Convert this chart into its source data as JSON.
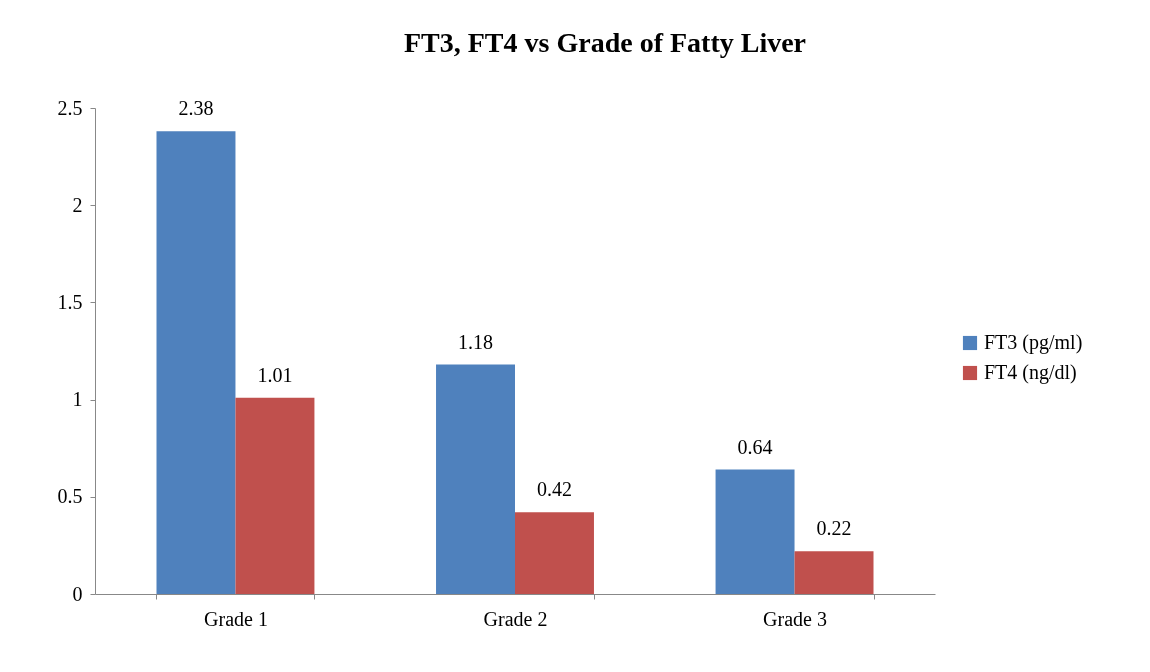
{
  "chart_data": {
    "type": "bar",
    "title": "FT3, FT4 vs Grade of Fatty Liver",
    "categories": [
      "Grade 1",
      "Grade 2",
      "Grade 3"
    ],
    "series": [
      {
        "name": "FT3 (pg/ml)",
        "color": "#4f81bd",
        "values": [
          2.38,
          1.18,
          0.64
        ]
      },
      {
        "name": "FT4 (ng/dl)",
        "color": "#c0504d",
        "values": [
          1.01,
          0.42,
          0.22
        ]
      }
    ],
    "ylim": [
      0,
      2.5
    ],
    "yticks": [
      0,
      0.5,
      1,
      1.5,
      2,
      2.5
    ],
    "grid": false,
    "legend": "right",
    "data_labels": true
  }
}
